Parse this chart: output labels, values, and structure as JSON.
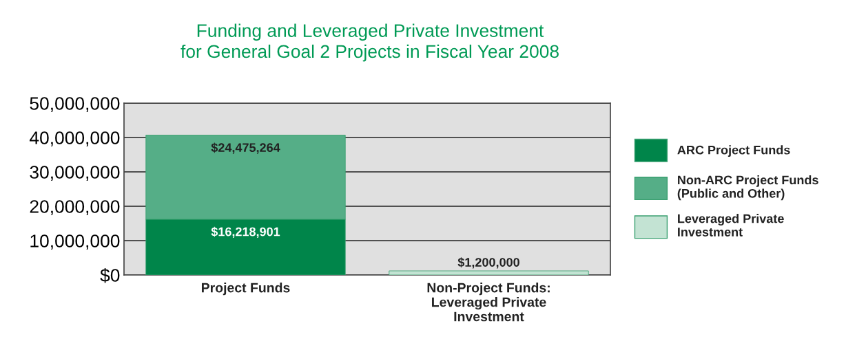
{
  "chart_data": {
    "type": "bar",
    "stacked": true,
    "title": "Funding and Leveraged Private Investment\nfor General Goal 2 Projects in Fiscal Year 2008",
    "categories": [
      "Project Funds",
      "Non-Project Funds:\nLeveraged Private\nInvestment"
    ],
    "series": [
      {
        "name": "ARC Project Funds",
        "color": "#00854a",
        "values": [
          16218901,
          null
        ],
        "value_labels": [
          "$16,218,901",
          null
        ]
      },
      {
        "name": "Non-ARC Project Funds\n(Public and Other)",
        "color": "#55ae87",
        "values": [
          24475264,
          null
        ],
        "value_labels": [
          "$24,475,264",
          null
        ]
      },
      {
        "name": "Leveraged Private\nInvestment",
        "color": "#c3e3d3",
        "values": [
          null,
          1200000
        ],
        "value_labels": [
          null,
          "$1,200,000"
        ]
      }
    ],
    "ylim": [
      0,
      50000000
    ],
    "yticks": [
      {
        "value": 0,
        "label": "$0"
      },
      {
        "value": 10000000,
        "label": "10,000,000"
      },
      {
        "value": 20000000,
        "label": "20,000,000"
      },
      {
        "value": 30000000,
        "label": "30,000,000"
      },
      {
        "value": 40000000,
        "label": "40,000,000"
      },
      {
        "value": 50000000,
        "label": "50,000,000"
      }
    ],
    "grid": "y",
    "legend": "right"
  }
}
